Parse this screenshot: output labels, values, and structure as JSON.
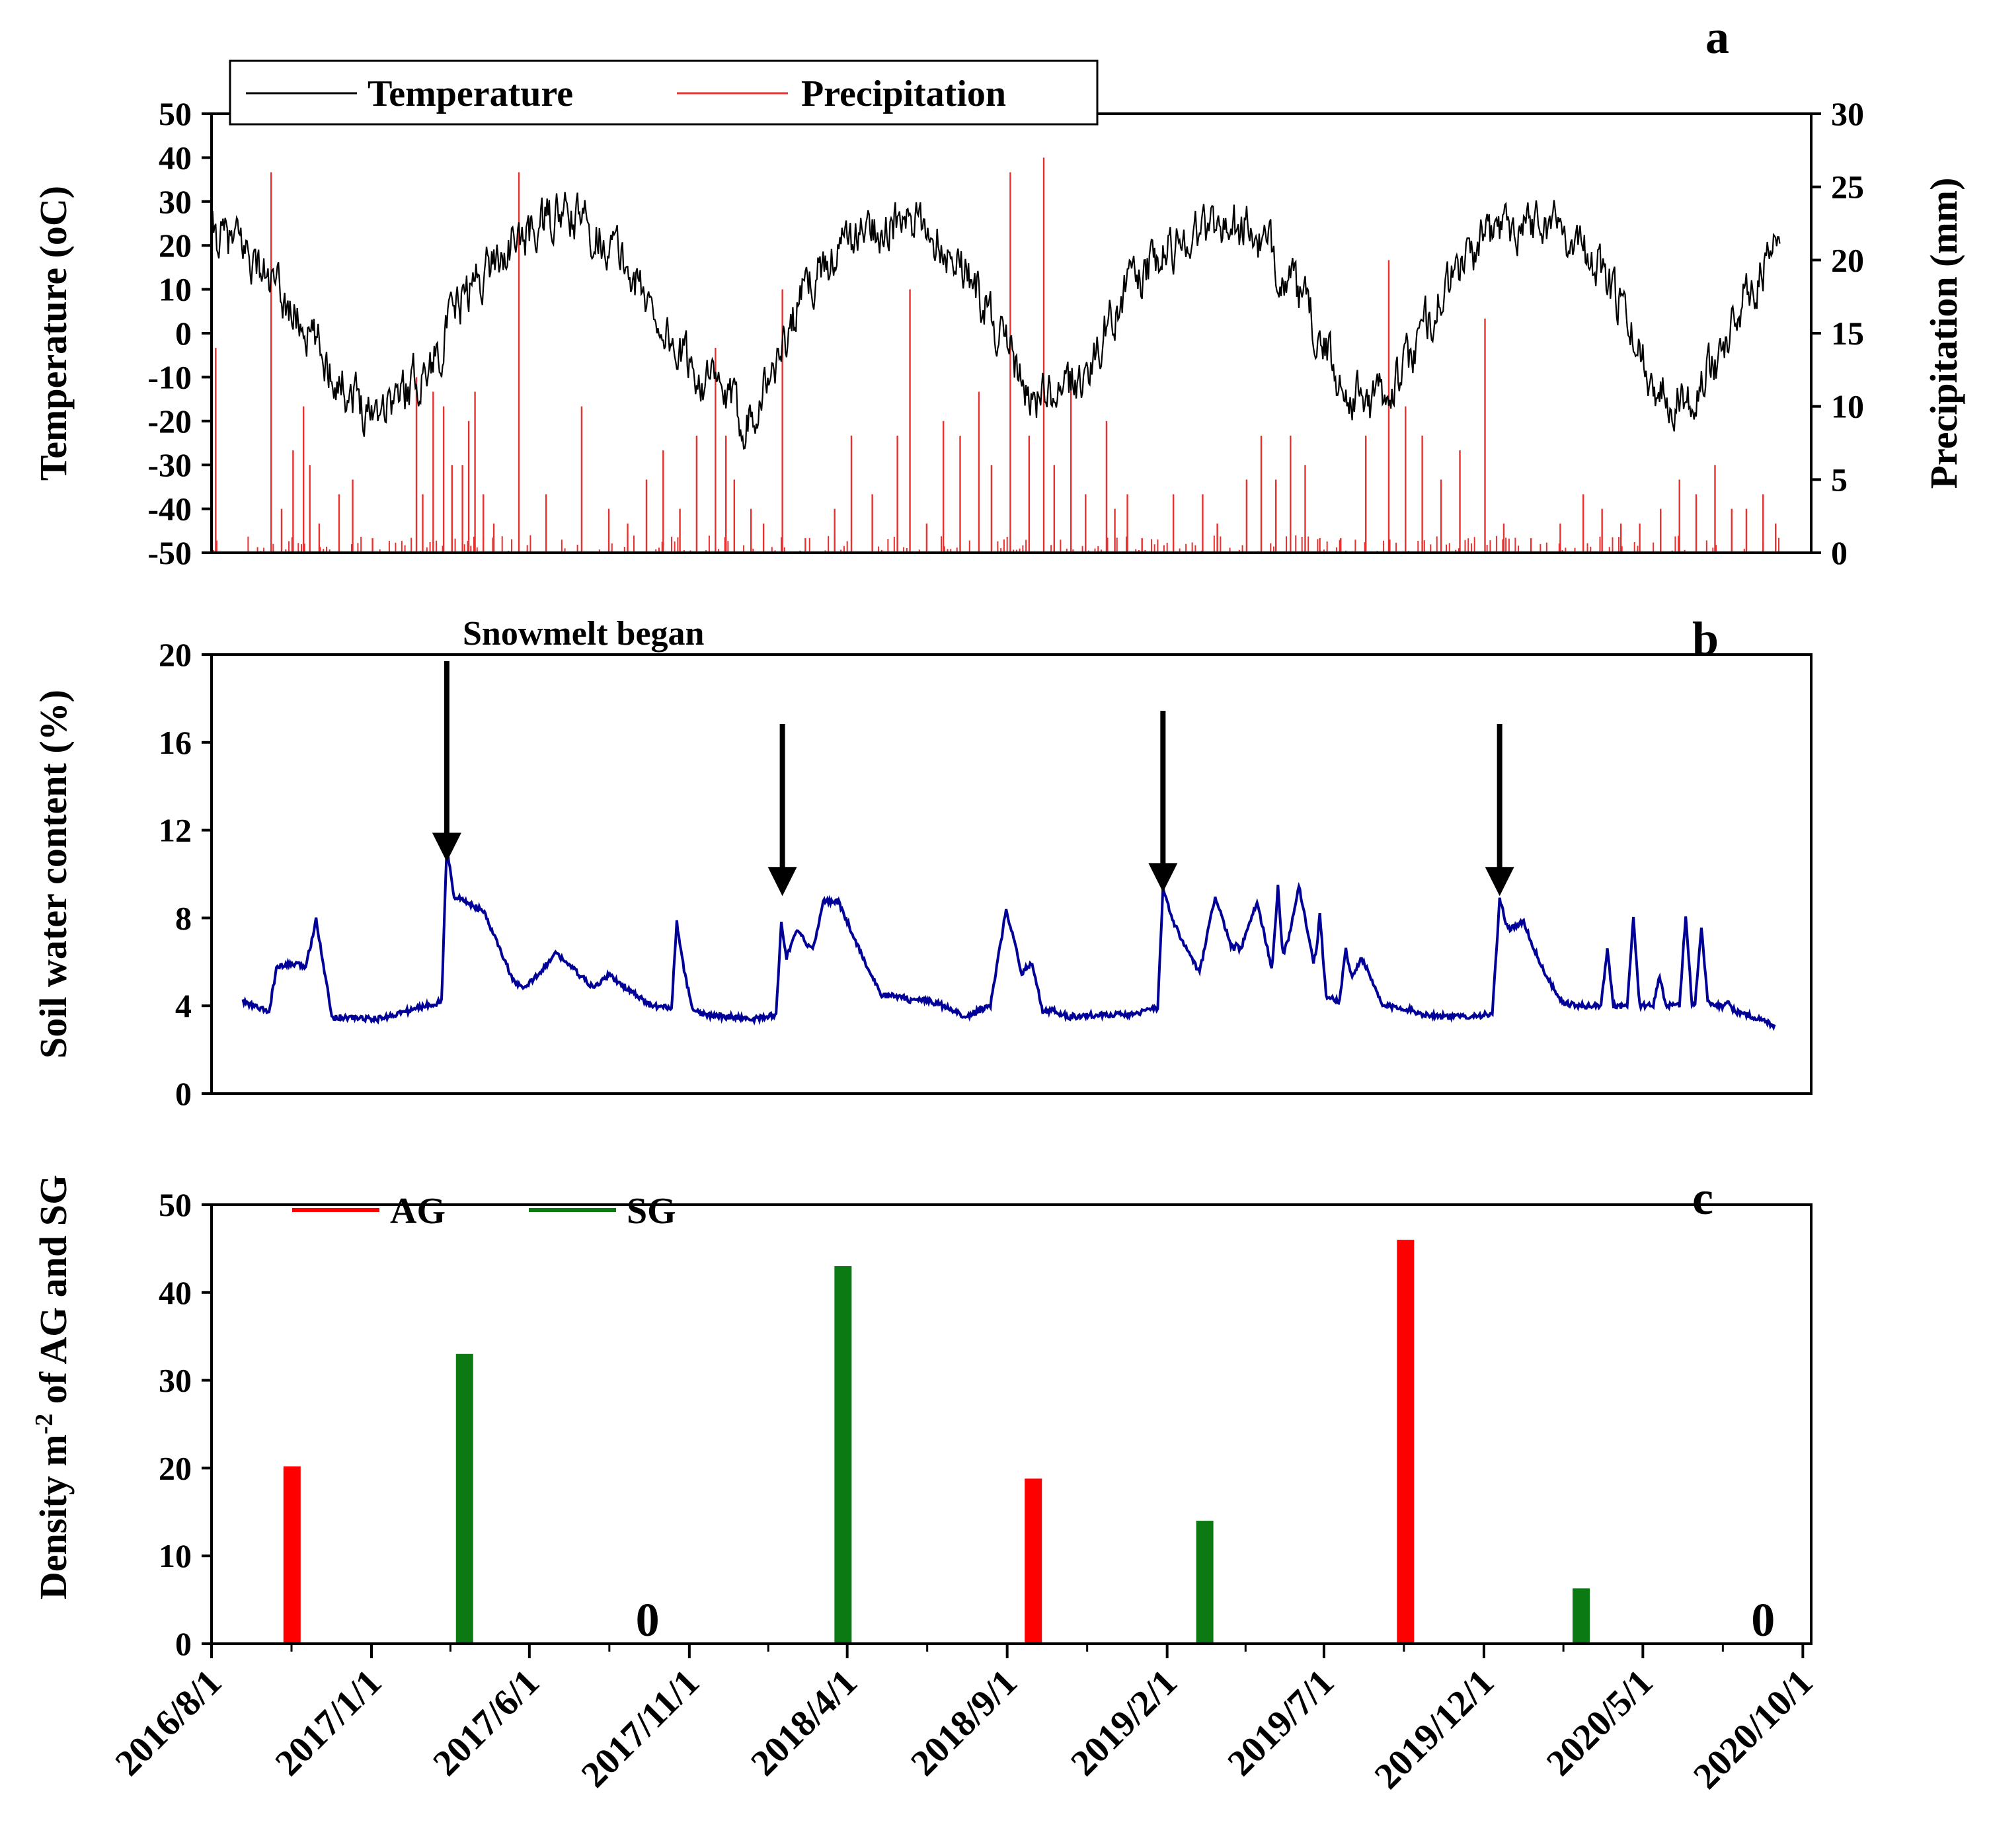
{
  "figure": {
    "panel_letters": [
      "a",
      "b",
      "c"
    ]
  },
  "chart_data": [
    {
      "panel": "a",
      "type": "line",
      "title": "",
      "xlabel": "",
      "ylabel_left": "Temperature (oC)",
      "ylabel_right": "Precipitation (mm)",
      "ylim_left": [
        -50,
        50
      ],
      "ylim_right": [
        0,
        30
      ],
      "yticks_left": [
        "50",
        "40",
        "30",
        "20",
        "10",
        "0",
        "-10",
        "-20",
        "-30",
        "-40",
        "-50"
      ],
      "yticks_right": [
        "30",
        "25",
        "20",
        "15",
        "10",
        "5",
        "0"
      ],
      "legend": [
        "Temperature",
        "Precipitation"
      ],
      "legend_position": "top-left",
      "colors": {
        "Temperature": "#000000",
        "Precipitation": "#e8312f"
      },
      "temperature_anchors": {
        "x_days": [
          0,
          30,
          60,
          90,
          120,
          150,
          180,
          210,
          240,
          270,
          300,
          330,
          360,
          390,
          420,
          450,
          480,
          510,
          540,
          570,
          600,
          630,
          660,
          690,
          720,
          750,
          780,
          810,
          840,
          870,
          900,
          930,
          960,
          990,
          1020,
          1050,
          1080,
          1110,
          1140,
          1170,
          1200,
          1230,
          1260,
          1290,
          1320,
          1350,
          1380,
          1410,
          1440,
          1470,
          1500
        ],
        "values_c": [
          22,
          20,
          10,
          1,
          -10,
          -17,
          -14,
          -7,
          8,
          17,
          22,
          27,
          25,
          18,
          6,
          -6,
          -12,
          -20,
          -7,
          11,
          19,
          24,
          25,
          23,
          15,
          2,
          -14,
          -15,
          -8,
          9,
          15,
          22,
          25,
          24,
          16,
          4,
          -12,
          -16,
          -9,
          6,
          17,
          24,
          26,
          25,
          17,
          5,
          -12,
          -15,
          -6,
          10,
          20
        ]
      },
      "precipitation_events": {
        "day_mm": [
          [
            4,
            14
          ],
          [
            57,
            26
          ],
          [
            67,
            3
          ],
          [
            78,
            7
          ],
          [
            88,
            10
          ],
          [
            94,
            6
          ],
          [
            103,
            2
          ],
          [
            122,
            4
          ],
          [
            135,
            5
          ],
          [
            154,
            1
          ],
          [
            196,
            12
          ],
          [
            202,
            4
          ],
          [
            212,
            11
          ],
          [
            222,
            10
          ],
          [
            230,
            6
          ],
          [
            240,
            6
          ],
          [
            246,
            9
          ],
          [
            252,
            11
          ],
          [
            260,
            4
          ],
          [
            270,
            2
          ],
          [
            294,
            26
          ],
          [
            320,
            4
          ],
          [
            354,
            10
          ],
          [
            380,
            3
          ],
          [
            398,
            2
          ],
          [
            416,
            5
          ],
          [
            432,
            7
          ],
          [
            448,
            3
          ],
          [
            464,
            8
          ],
          [
            482,
            14
          ],
          [
            492,
            8
          ],
          [
            500,
            5
          ],
          [
            516,
            3
          ],
          [
            528,
            2
          ],
          [
            546,
            18
          ],
          [
            568,
            1
          ],
          [
            596,
            3
          ],
          [
            612,
            8
          ],
          [
            632,
            4
          ],
          [
            656,
            8
          ],
          [
            668,
            18
          ],
          [
            684,
            2
          ],
          [
            700,
            9
          ],
          [
            716,
            8
          ],
          [
            734,
            11
          ],
          [
            746,
            6
          ],
          [
            764,
            26
          ],
          [
            782,
            8
          ],
          [
            796,
            27
          ],
          [
            806,
            6
          ],
          [
            822,
            12
          ],
          [
            836,
            4
          ],
          [
            856,
            9
          ],
          [
            864,
            3
          ],
          [
            876,
            4
          ],
          [
            890,
            1
          ],
          [
            920,
            4
          ],
          [
            948,
            4
          ],
          [
            962,
            2
          ],
          [
            990,
            5
          ],
          [
            1004,
            8
          ],
          [
            1018,
            5
          ],
          [
            1032,
            8
          ],
          [
            1046,
            6
          ],
          [
            1060,
            1
          ],
          [
            1080,
            1
          ],
          [
            1104,
            8
          ],
          [
            1126,
            20
          ],
          [
            1142,
            10
          ],
          [
            1158,
            8
          ],
          [
            1176,
            5
          ],
          [
            1194,
            7
          ],
          [
            1218,
            16
          ],
          [
            1236,
            2
          ],
          [
            1262,
            1
          ],
          [
            1290,
            2
          ],
          [
            1312,
            4
          ],
          [
            1330,
            3
          ],
          [
            1348,
            2
          ],
          [
            1366,
            2
          ],
          [
            1386,
            3
          ],
          [
            1404,
            5
          ],
          [
            1420,
            4
          ],
          [
            1438,
            6
          ],
          [
            1454,
            3
          ],
          [
            1468,
            3
          ],
          [
            1484,
            4
          ],
          [
            1496,
            2
          ]
        ]
      }
    },
    {
      "panel": "b",
      "type": "line",
      "title": "",
      "xlabel": "",
      "ylabel": "Soil water content (%)",
      "ylim": [
        0,
        20
      ],
      "yticks": [
        "20",
        "16",
        "12",
        "8",
        "4",
        "0"
      ],
      "color": "#000099",
      "annotation": "Snowmelt began",
      "snowmelt_arrow_days": [
        225,
        546,
        910,
        1232
      ],
      "series_anchors": {
        "x_days": [
          30,
          55,
          62,
          75,
          90,
          95,
          100,
          115,
          160,
          220,
          225,
          232,
          245,
          260,
          272,
          290,
          300,
          330,
          350,
          365,
          380,
          420,
          440,
          445,
          452,
          460,
          470,
          520,
          540,
          545,
          550,
          560,
          575,
          585,
          600,
          625,
          640,
          660,
          670,
          680,
          700,
          720,
          745,
          760,
          775,
          785,
          795,
          805,
          820,
          850,
          880,
          905,
          910,
          918,
          928,
          945,
          960,
          980,
          1000,
          1020,
          1040,
          1060,
          1080,
          1100,
          1120,
          1140,
          1160,
          1190,
          1225,
          1232,
          1240,
          1255,
          1270,
          1290,
          1305,
          1340,
          1400,
          1430,
          1480,
          1495
        ],
        "values": [
          4.2,
          3.7,
          5.7,
          5.9,
          5.8,
          6.8,
          8.0,
          3.5,
          3.4,
          4.2,
          11.2,
          9.0,
          8.7,
          8.3,
          7.0,
          5.0,
          4.8,
          6.4,
          5.5,
          4.8,
          5.4,
          4.0,
          3.9,
          7.8,
          5.6,
          3.8,
          3.6,
          3.4,
          3.6,
          7.8,
          6.2,
          7.4,
          6.5,
          8.8,
          8.7,
          6.0,
          4.5,
          4.4,
          4.2,
          4.3,
          4.0,
          3.5,
          4.0,
          8.4,
          5.5,
          6.0,
          3.7,
          3.8,
          3.5,
          3.6,
          3.6,
          3.9,
          9.4,
          8.0,
          7.0,
          5.5,
          9.0,
          6.0,
          8.7,
          4.5,
          9.5,
          4.5,
          4.2,
          6.2,
          4.0,
          3.9,
          3.6,
          3.5,
          3.6,
          8.8,
          7.5,
          7.8,
          6.0,
          4.2,
          4.0,
          4.0,
          4.0,
          4.2,
          3.4,
          3.1
        ]
      },
      "spike_anchors": [
        [
          968,
          7.2
        ],
        [
          980,
          6.8
        ],
        [
          1020,
          9.5
        ],
        [
          1030,
          7.1
        ],
        [
          1060,
          8.2
        ],
        [
          1085,
          6.6
        ],
        [
          1335,
          6.6
        ],
        [
          1360,
          8.0
        ],
        [
          1385,
          5.4
        ],
        [
          1410,
          8.1
        ],
        [
          1425,
          7.6
        ],
        [
          1450,
          4.2
        ]
      ]
    },
    {
      "panel": "c",
      "type": "bar",
      "title": "",
      "xlabel": "",
      "ylabel": "Density m-2 of AG and SG",
      "ylim": [
        0,
        50
      ],
      "yticks": [
        "50",
        "40",
        "30",
        "20",
        "10",
        "0"
      ],
      "legend": [
        "AG",
        "SG"
      ],
      "legend_position": "top-left",
      "colors": {
        "AG": "#ff0000",
        "SG": "#0b7a12"
      },
      "bars": [
        {
          "series": "AG",
          "day": 77,
          "value": 20.2
        },
        {
          "series": "SG",
          "day": 242,
          "value": 33.0
        },
        {
          "series": "SG",
          "day": 604,
          "value": 43.0
        },
        {
          "series": "AG",
          "day": 786,
          "value": 18.8
        },
        {
          "series": "SG",
          "day": 950,
          "value": 14.0
        },
        {
          "series": "AG",
          "day": 1142,
          "value": 46.0
        },
        {
          "series": "SG",
          "day": 1310,
          "value": 6.3
        }
      ],
      "zero_labels": [
        {
          "text": "0",
          "day": 417
        },
        {
          "text": "0",
          "day": 1484
        }
      ],
      "x_ticks": [
        "2016/8/1",
        "2017/1/1",
        "2017/6/1",
        "2017/11/1",
        "2018/4/1",
        "2018/9/1",
        "2019/2/1",
        "2019/7/1",
        "2019/12/1",
        "2020/5/1",
        "2020/10/1"
      ]
    }
  ]
}
